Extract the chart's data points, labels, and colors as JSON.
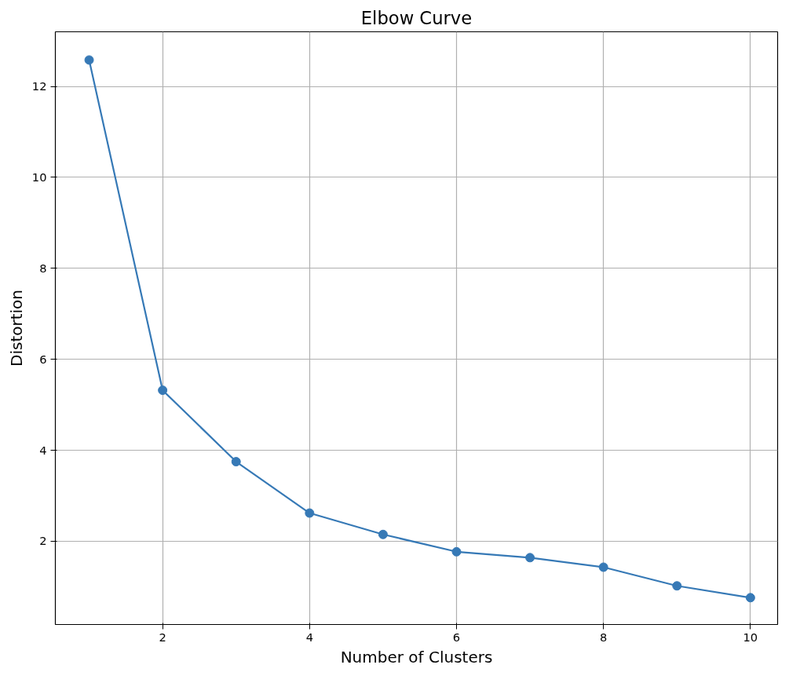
{
  "chart_data": {
    "type": "line",
    "title": "Elbow Curve",
    "xlabel": "Number of Clusters",
    "ylabel": "Distortion",
    "x": [
      1,
      2,
      3,
      4,
      5,
      6,
      7,
      8,
      9,
      10
    ],
    "series": [
      {
        "color": "#3679b6",
        "values": [
          12.58,
          5.32,
          3.75,
          2.62,
          2.15,
          1.77,
          1.64,
          1.43,
          1.02,
          0.76
        ]
      }
    ],
    "xlim": [
      0.54,
      10.37
    ],
    "ylim": [
      0.17,
      13.2
    ],
    "xticks": [
      2,
      4,
      6,
      8,
      10
    ],
    "yticks": [
      2,
      4,
      6,
      8,
      10,
      12
    ],
    "grid": true,
    "marker": "circle",
    "line_style": "solid"
  }
}
